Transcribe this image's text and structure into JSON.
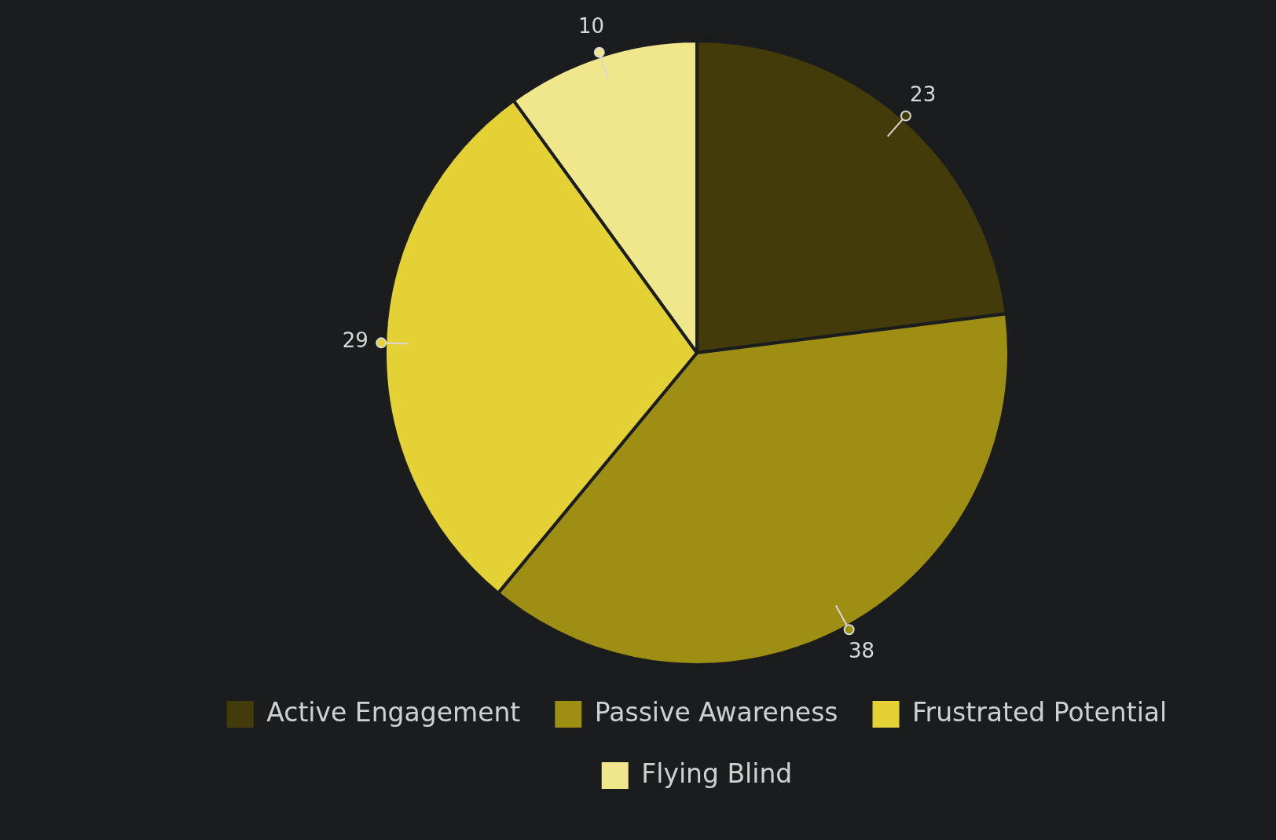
{
  "chart_data": {
    "type": "pie",
    "categories": [
      "Active Engagement",
      "Passive Awareness",
      "Frustrated Potential",
      "Flying Blind"
    ],
    "values": [
      23,
      38,
      29,
      10
    ],
    "colors": [
      "#433b0a",
      "#9e8e14",
      "#e3d135",
      "#f0e68c"
    ],
    "data_labels": true,
    "legend": "bottom"
  }
}
